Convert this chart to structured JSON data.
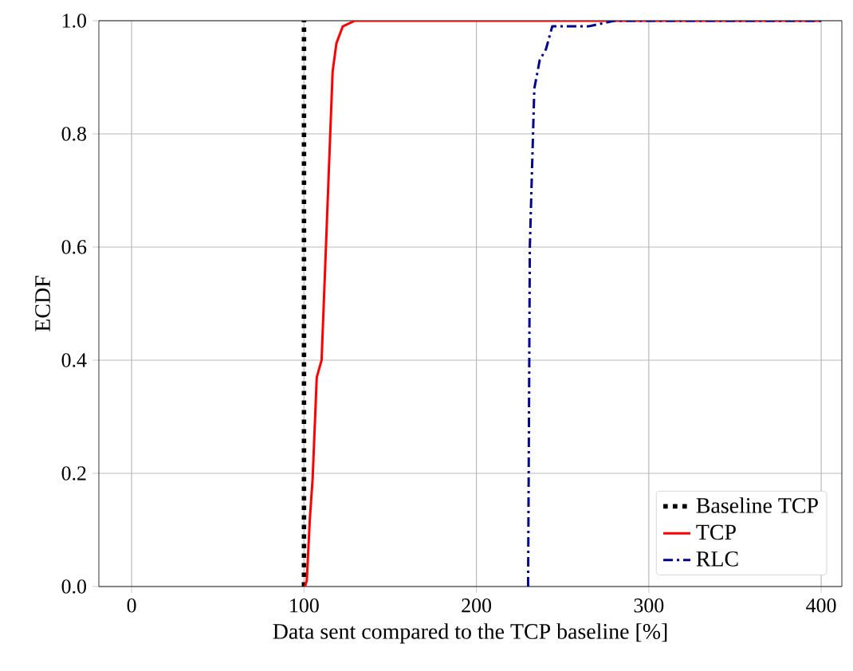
{
  "chart_data": {
    "type": "line",
    "xlabel": "Data sent compared to the TCP baseline [%]",
    "ylabel": "ECDF",
    "xlim": [
      -19,
      412
    ],
    "ylim": [
      0,
      1
    ],
    "xticks": [
      0,
      100,
      200,
      300,
      400
    ],
    "yticks": [
      {
        "value": 0,
        "label": "0.0"
      },
      {
        "value": 0.2,
        "label": "0.2"
      },
      {
        "value": 0.4,
        "label": "0.4"
      },
      {
        "value": 0.6,
        "label": "0.6"
      },
      {
        "value": 0.8,
        "label": "0.8"
      },
      {
        "value": 1,
        "label": "1.0"
      }
    ],
    "grid": true,
    "legend": "bottom right",
    "series": [
      {
        "name": "Baseline TCP",
        "color": "#000000",
        "line_style": "dotted",
        "x": [
          100,
          100
        ],
        "values": [
          0,
          1
        ]
      },
      {
        "name": "TCP",
        "color": "#ff0000",
        "line_style": "solid",
        "x": [
          100.5,
          101.6,
          103.4,
          105,
          107.4,
          110.2,
          112.6,
          116.6,
          118.8,
          122.5,
          129.5,
          400
        ],
        "values": [
          0,
          0.01,
          0.12,
          0.19,
          0.37,
          0.4,
          0.59,
          0.91,
          0.96,
          0.99,
          1,
          1
        ]
      },
      {
        "name": "RLC",
        "color": "#00008b",
        "line_style": "dashdot",
        "x": [
          230,
          231,
          233.6,
          236.7,
          240.4,
          244,
          265,
          280,
          400
        ],
        "values": [
          0,
          0.6,
          0.88,
          0.93,
          0.95,
          0.99,
          0.99,
          1,
          1
        ]
      }
    ]
  }
}
